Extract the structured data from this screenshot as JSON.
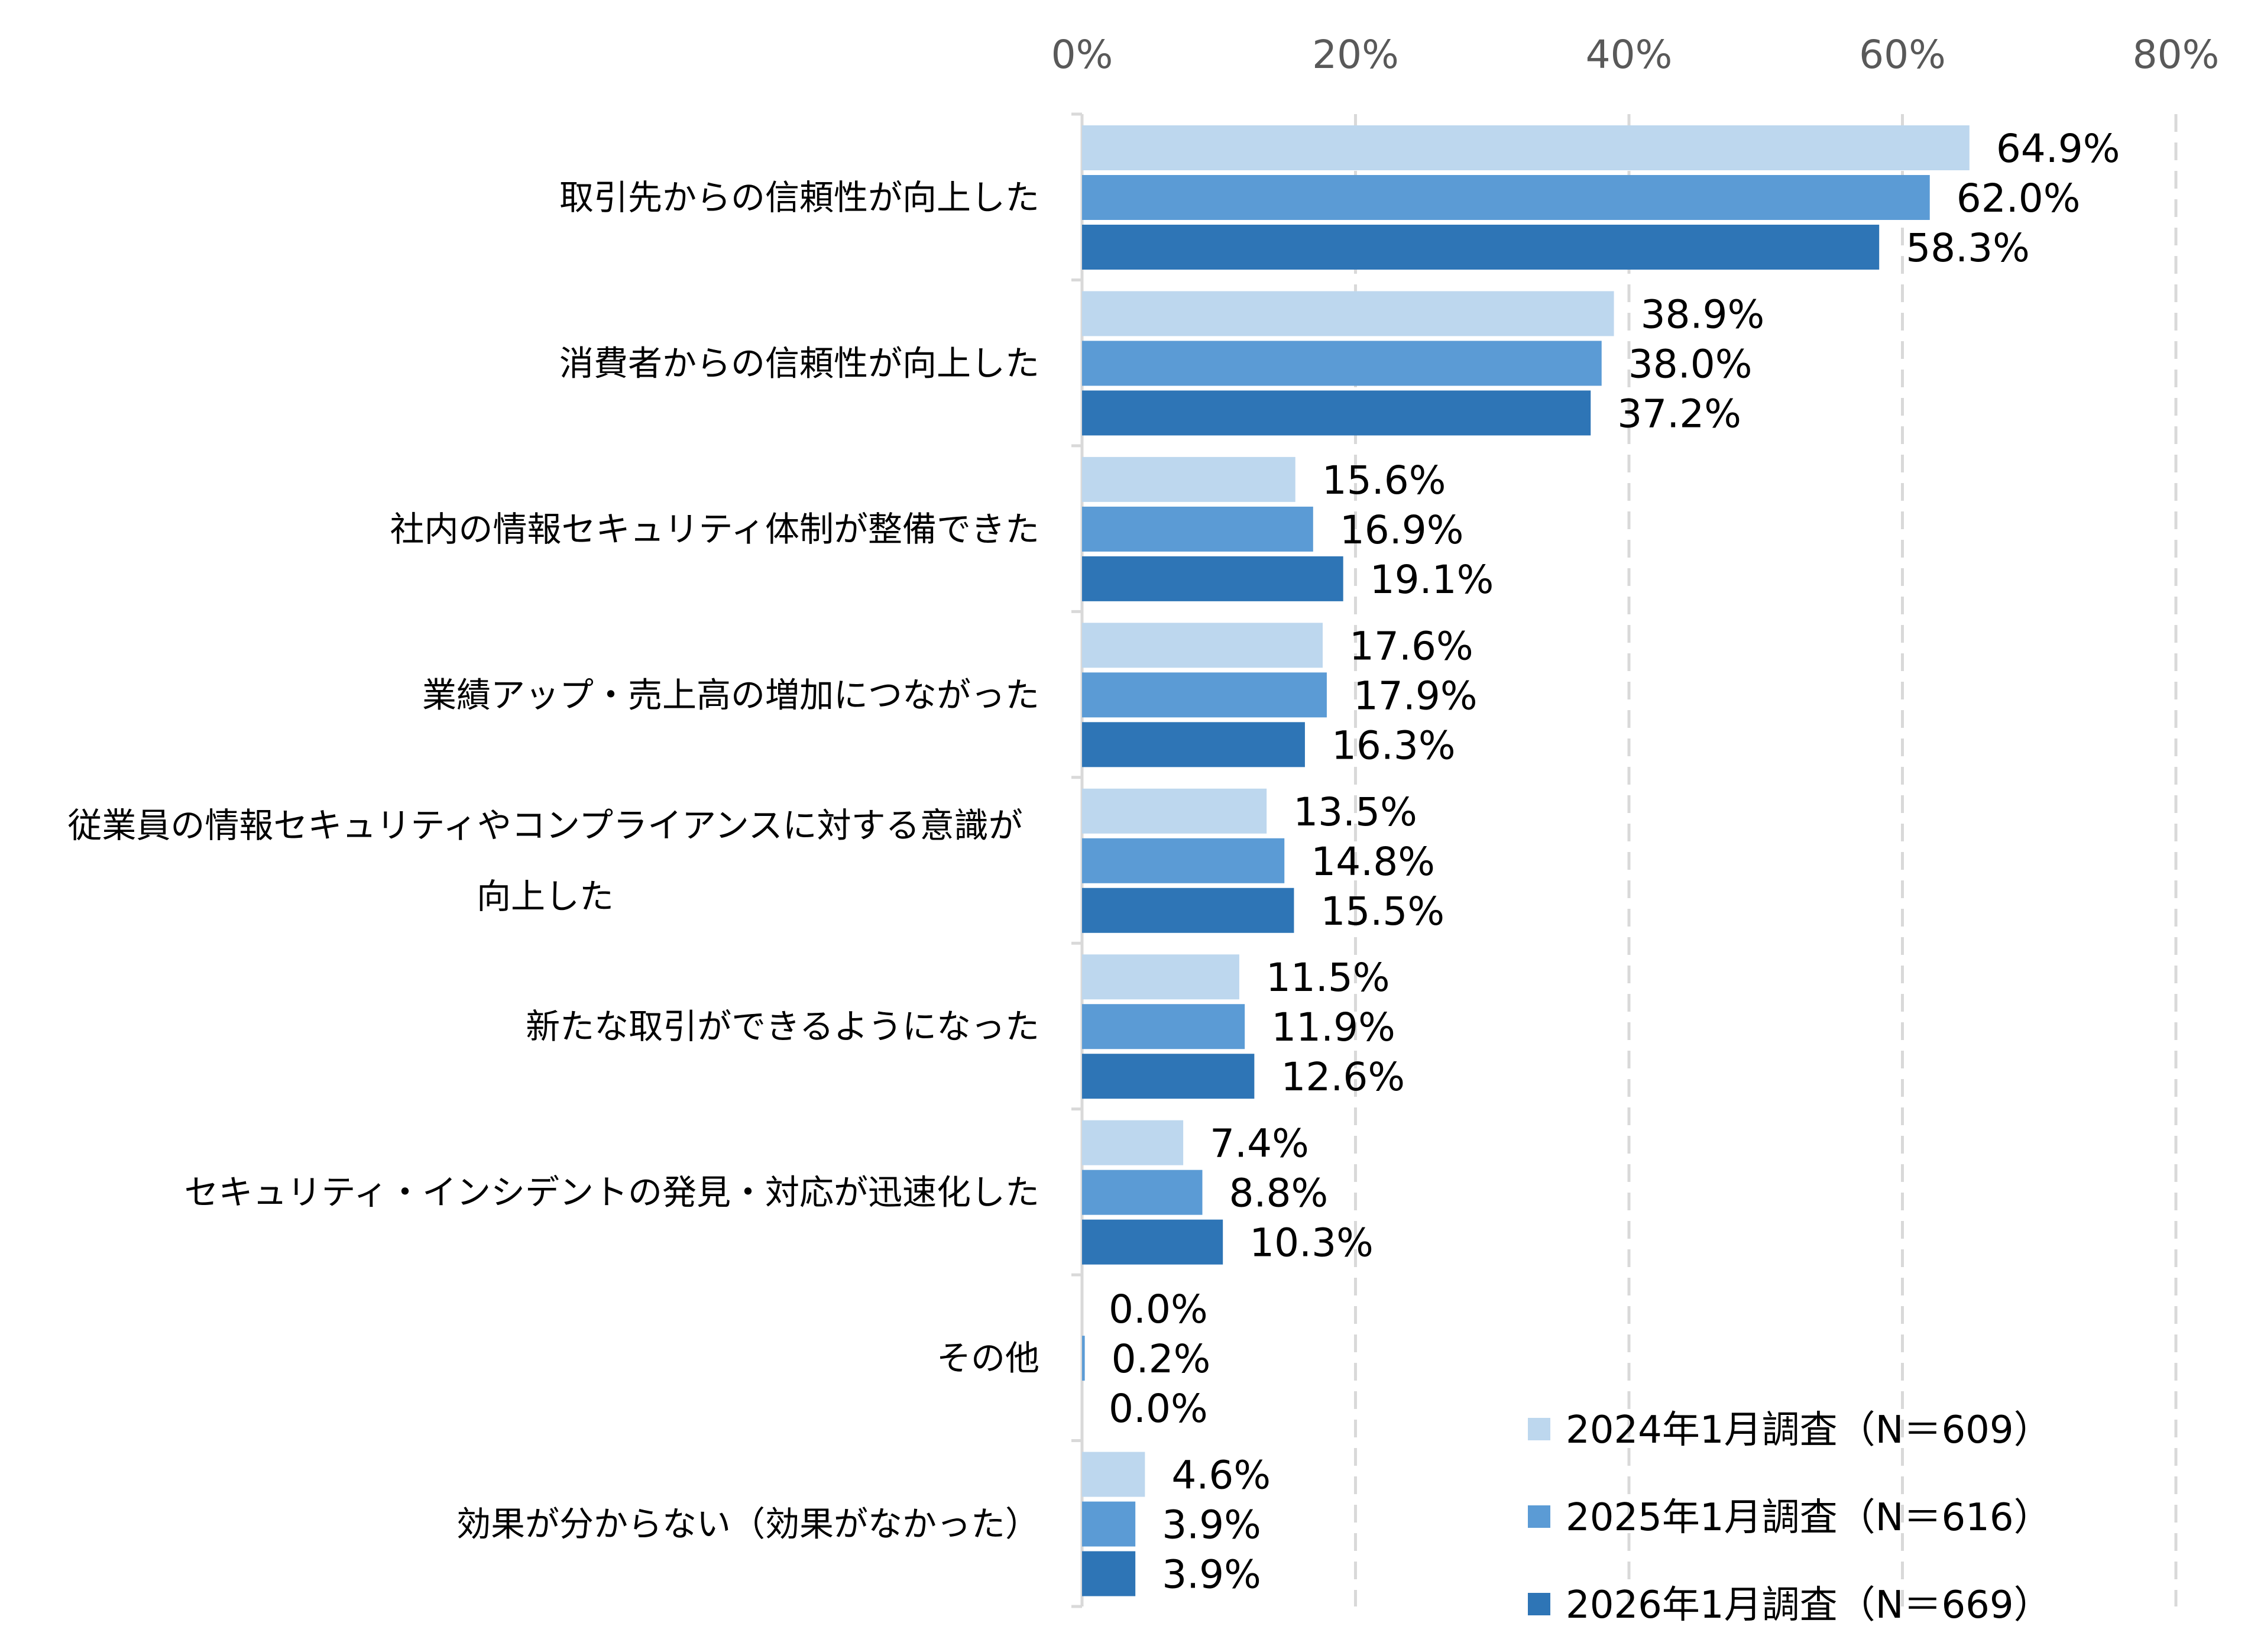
{
  "chart_data": {
    "type": "bar",
    "orientation": "horizontal",
    "title": "",
    "xlabel": "",
    "ylabel": "",
    "xlim": [
      0,
      80
    ],
    "x_ticks": [
      "0%",
      "20%",
      "40%",
      "60%",
      "80%"
    ],
    "grid": "vertical dashed",
    "legend_position": "bottom-right",
    "categories": [
      [
        "取引先からの信頼性が向上した"
      ],
      [
        "消費者からの信頼性が向上した"
      ],
      [
        "社内の情報セキュリティ体制が整備できた"
      ],
      [
        "業績アップ・売上高の増加につながった"
      ],
      [
        "従業員の情報セキュリティやコンプライアンスに対する意識が",
        "向上した"
      ],
      [
        "新たな取引ができるようになった"
      ],
      [
        "セキュリティ・インシデントの発見・対応が迅速化した"
      ],
      [
        "その他"
      ],
      [
        "効果が分からない（効果がなかった）"
      ]
    ],
    "series": [
      {
        "name": "2024年1月調査（N＝609）",
        "color": "#BDD7EE",
        "values": [
          64.9,
          38.9,
          15.6,
          17.6,
          13.5,
          11.5,
          7.4,
          0.0,
          4.6
        ]
      },
      {
        "name": "2025年1月調査（N＝616）",
        "color": "#5B9BD5",
        "values": [
          62.0,
          38.0,
          16.9,
          17.9,
          14.8,
          11.9,
          8.8,
          0.2,
          3.9
        ]
      },
      {
        "name": "2026年1月調査（N＝669）",
        "color": "#2E75B6",
        "values": [
          58.3,
          37.2,
          19.1,
          16.3,
          15.5,
          12.6,
          10.3,
          0.0,
          3.9
        ]
      }
    ],
    "value_suffix": "%"
  }
}
